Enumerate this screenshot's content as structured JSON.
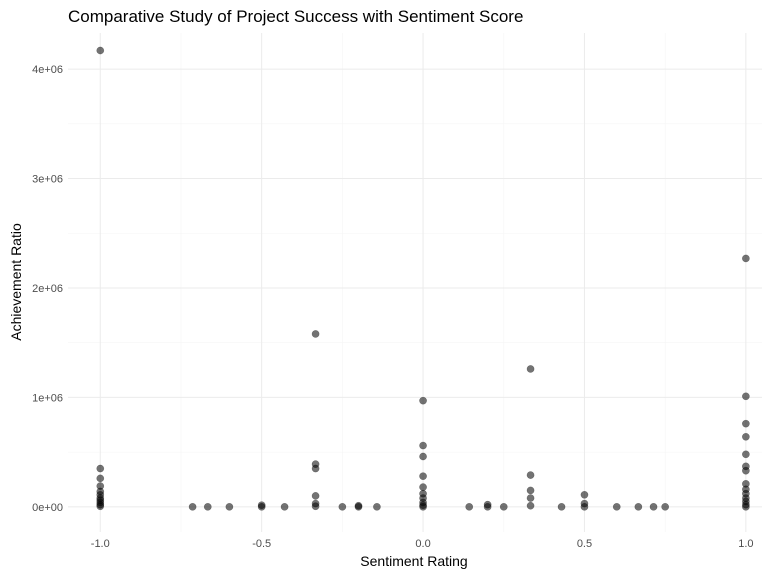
{
  "chart_data": {
    "type": "scatter",
    "title": "Comparative Study of Project Success with Sentiment Score",
    "xlabel": "Sentiment Rating",
    "ylabel": "Achievement Ratio",
    "xlim": [
      -1.1,
      1.05
    ],
    "ylim": [
      -230000,
      4330000
    ],
    "x_ticks": [
      -1.0,
      -0.5,
      0.0,
      0.5,
      1.0
    ],
    "x_tick_labels": [
      "-1.0",
      "-0.5",
      "0.0",
      "0.5",
      "1.0"
    ],
    "y_ticks": [
      0,
      1000000,
      2000000,
      3000000,
      4000000
    ],
    "y_tick_labels": [
      "0e+00",
      "1e+06",
      "2e+06",
      "3e+06",
      "4e+06"
    ],
    "grid": true,
    "point_color": "#000000",
    "points": [
      {
        "x": -1.0,
        "y": 4170000
      },
      {
        "x": -1.0,
        "y": 350000
      },
      {
        "x": -1.0,
        "y": 260000
      },
      {
        "x": -1.0,
        "y": 190000
      },
      {
        "x": -1.0,
        "y": 140000
      },
      {
        "x": -1.0,
        "y": 110000
      },
      {
        "x": -1.0,
        "y": 80000
      },
      {
        "x": -1.0,
        "y": 60000
      },
      {
        "x": -1.0,
        "y": 40000
      },
      {
        "x": -1.0,
        "y": 20000
      },
      {
        "x": -1.0,
        "y": 5000
      },
      {
        "x": -0.714,
        "y": 0
      },
      {
        "x": -0.667,
        "y": 0
      },
      {
        "x": -0.6,
        "y": 0
      },
      {
        "x": -0.5,
        "y": 15000
      },
      {
        "x": -0.5,
        "y": 0
      },
      {
        "x": -0.429,
        "y": 0
      },
      {
        "x": -0.333,
        "y": 1580000
      },
      {
        "x": -0.333,
        "y": 390000
      },
      {
        "x": -0.333,
        "y": 350000
      },
      {
        "x": -0.333,
        "y": 100000
      },
      {
        "x": -0.333,
        "y": 30000
      },
      {
        "x": -0.333,
        "y": 5000
      },
      {
        "x": -0.25,
        "y": 0
      },
      {
        "x": -0.2,
        "y": 10000
      },
      {
        "x": -0.2,
        "y": 0
      },
      {
        "x": -0.143,
        "y": 0
      },
      {
        "x": 0.0,
        "y": 970000
      },
      {
        "x": 0.0,
        "y": 560000
      },
      {
        "x": 0.0,
        "y": 460000
      },
      {
        "x": 0.0,
        "y": 280000
      },
      {
        "x": 0.0,
        "y": 180000
      },
      {
        "x": 0.0,
        "y": 120000
      },
      {
        "x": 0.0,
        "y": 80000
      },
      {
        "x": 0.0,
        "y": 40000
      },
      {
        "x": 0.0,
        "y": 15000
      },
      {
        "x": 0.0,
        "y": 0
      },
      {
        "x": 0.143,
        "y": 0
      },
      {
        "x": 0.2,
        "y": 20000
      },
      {
        "x": 0.2,
        "y": 0
      },
      {
        "x": 0.25,
        "y": 0
      },
      {
        "x": 0.333,
        "y": 1260000
      },
      {
        "x": 0.333,
        "y": 290000
      },
      {
        "x": 0.333,
        "y": 150000
      },
      {
        "x": 0.333,
        "y": 80000
      },
      {
        "x": 0.333,
        "y": 10000
      },
      {
        "x": 0.429,
        "y": 0
      },
      {
        "x": 0.5,
        "y": 110000
      },
      {
        "x": 0.5,
        "y": 30000
      },
      {
        "x": 0.5,
        "y": 0
      },
      {
        "x": 0.6,
        "y": 0
      },
      {
        "x": 0.667,
        "y": 0
      },
      {
        "x": 0.714,
        "y": 0
      },
      {
        "x": 0.75,
        "y": 0
      },
      {
        "x": 1.0,
        "y": 2270000
      },
      {
        "x": 1.0,
        "y": 1010000
      },
      {
        "x": 1.0,
        "y": 760000
      },
      {
        "x": 1.0,
        "y": 640000
      },
      {
        "x": 1.0,
        "y": 480000
      },
      {
        "x": 1.0,
        "y": 370000
      },
      {
        "x": 1.0,
        "y": 330000
      },
      {
        "x": 1.0,
        "y": 210000
      },
      {
        "x": 1.0,
        "y": 160000
      },
      {
        "x": 1.0,
        "y": 120000
      },
      {
        "x": 1.0,
        "y": 80000
      },
      {
        "x": 1.0,
        "y": 50000
      },
      {
        "x": 1.0,
        "y": 20000
      },
      {
        "x": 1.0,
        "y": 0
      }
    ]
  }
}
